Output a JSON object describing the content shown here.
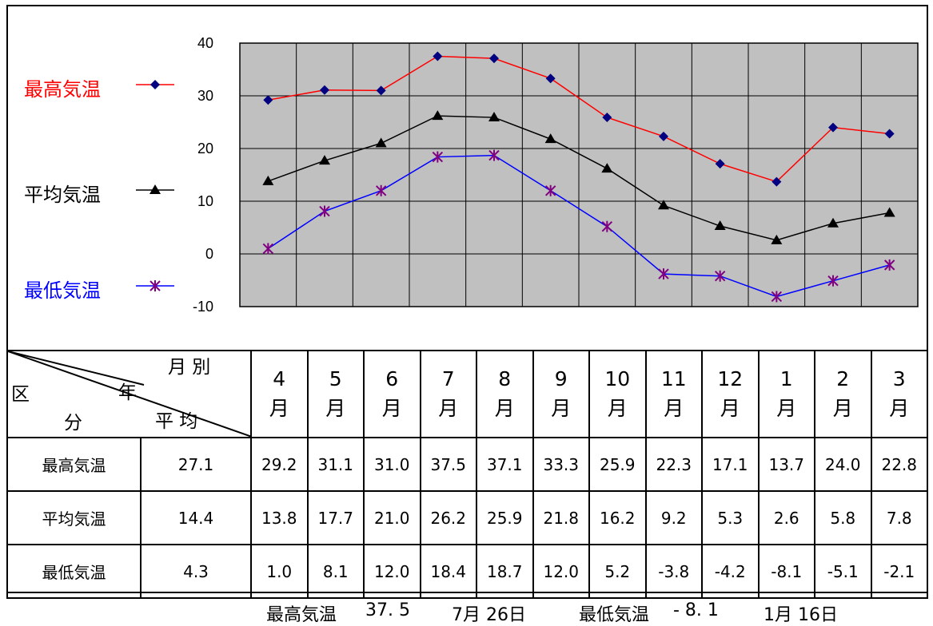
{
  "chart_data": {
    "type": "line",
    "categories": [
      "4",
      "5",
      "6",
      "7",
      "8",
      "9",
      "10",
      "11",
      "12",
      "1",
      "2",
      "3"
    ],
    "ylim": [
      -10,
      40
    ],
    "yticks": [
      "40",
      "30",
      "20",
      "10",
      "0",
      "-10"
    ],
    "grid": true,
    "legend_placement": "left",
    "series": [
      {
        "name": "最高気温",
        "color": "#ff0000",
        "marker_color": "#000080",
        "marker": "diamond",
        "values": [
          29.2,
          31.1,
          31.0,
          37.5,
          37.1,
          33.3,
          25.9,
          22.3,
          17.1,
          13.7,
          24.0,
          22.8
        ]
      },
      {
        "name": "平均気温",
        "color": "#000000",
        "marker_color": "#000000",
        "marker": "triangle",
        "values": [
          13.8,
          17.7,
          21.0,
          26.2,
          25.9,
          21.8,
          16.2,
          9.2,
          5.3,
          2.6,
          5.8,
          7.8
        ]
      },
      {
        "name": "最低気温",
        "color": "#0000ff",
        "marker_color": "#800080",
        "marker": "asterisk",
        "values": [
          1.0,
          8.1,
          12.0,
          18.4,
          18.7,
          12.0,
          5.2,
          -3.8,
          -4.2,
          -8.1,
          -5.1,
          -2.1
        ]
      }
    ],
    "plot_background": "#c0c0c0"
  },
  "legend": [
    {
      "label": "最高気温",
      "color": "#ff0000"
    },
    {
      "label": "平均気温",
      "color": "#000000"
    },
    {
      "label": "最低気温",
      "color": "#0000ff"
    }
  ],
  "table": {
    "corner": {
      "month": "月 別",
      "ku": "区",
      "nen": "年",
      "bun": "分",
      "heikin": "平 均"
    },
    "month_suffix": "月",
    "months": [
      "4",
      "5",
      "6",
      "7",
      "8",
      "9",
      "10",
      "11",
      "12",
      "1",
      "2",
      "3"
    ],
    "rows": [
      {
        "label": "最高気温",
        "avg": "27.1",
        "values": [
          "29.2",
          "31.1",
          "31.0",
          "37.5",
          "37.1",
          "33.3",
          "25.9",
          "22.3",
          "17.1",
          "13.7",
          "24.0",
          "22.8"
        ]
      },
      {
        "label": "平均気温",
        "avg": "14.4",
        "values": [
          "13.8",
          "17.7",
          "21.0",
          "26.2",
          "25.9",
          "21.8",
          "16.2",
          "9.2",
          "5.3",
          "2.6",
          "5.8",
          "7.8"
        ]
      },
      {
        "label": "最低気温",
        "avg": "4.3",
        "values": [
          "1.0",
          "8.1",
          "12.0",
          "18.4",
          "18.7",
          "12.0",
          "5.2",
          "-3.8",
          "-4.2",
          "-8.1",
          "-5.1",
          "-2.1"
        ]
      }
    ]
  },
  "footer": {
    "max_label": "最高気温",
    "max_value": "37. 5",
    "max_date": "7月 26日",
    "min_label": "最低気温",
    "min_value": "- 8. 1",
    "min_date": "1月 16日"
  }
}
